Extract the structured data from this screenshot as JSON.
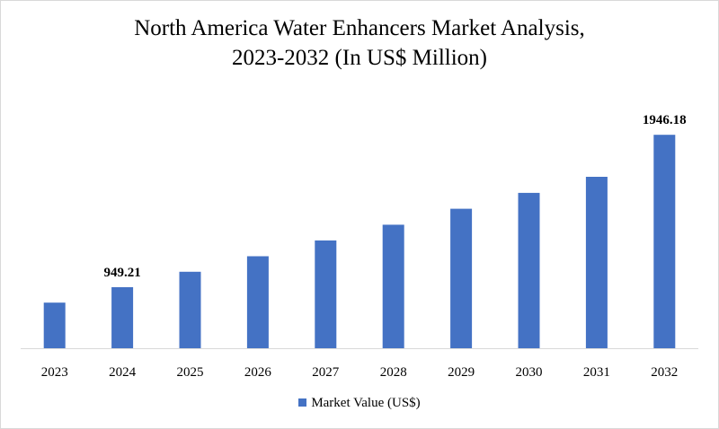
{
  "chart_data": {
    "type": "bar",
    "title_line1": "North America Water Enhancers Market Analysis,",
    "title_line2": "2023-2032 (In US$ Million)",
    "categories": [
      "2023",
      "2024",
      "2025",
      "2026",
      "2027",
      "2028",
      "2029",
      "2030",
      "2031",
      "2032"
    ],
    "series": [
      {
        "name": "Market Value (US$)",
        "values": [
          848,
          949.21,
          1050,
          1152,
          1255,
          1358,
          1462,
          1566,
          1671,
          1946.18
        ]
      }
    ],
    "data_labels": [
      {
        "category": "2024",
        "text": "949.21"
      },
      {
        "category": "2032",
        "text": "1946.18"
      }
    ],
    "ylim": [
      550,
      2000
    ],
    "grid": false,
    "legend_position": "bottom",
    "bar_color": "#4472C4",
    "axis_color": "#d9d9d9"
  }
}
